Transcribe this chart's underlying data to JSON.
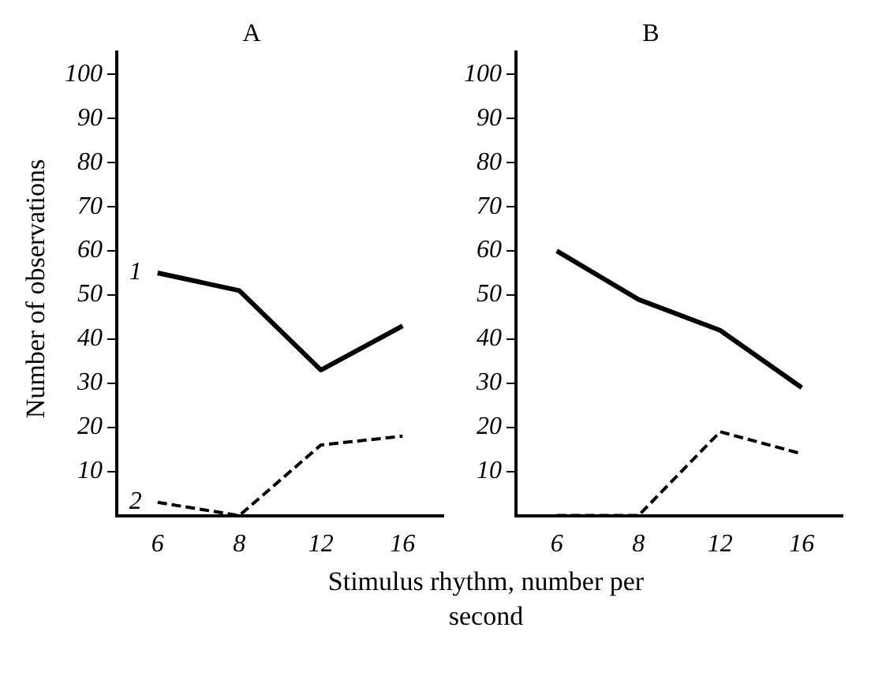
{
  "chart_data": [
    {
      "type": "line",
      "title": "A",
      "ylabel": "Number of observations",
      "xlabel": "Stimulus rhythm, number per second",
      "categories": [
        "6",
        "8",
        "12",
        "16"
      ],
      "ylim": [
        0,
        105
      ],
      "yticks": [
        10,
        20,
        30,
        40,
        50,
        60,
        70,
        80,
        90,
        100
      ],
      "grid": false,
      "legend": false,
      "marker": "none",
      "series": [
        {
          "name": "1",
          "color": "#000000",
          "line_style": "solid",
          "values": [
            55,
            51,
            33,
            43
          ]
        },
        {
          "name": "2",
          "color": "#000000",
          "line_style": "dashed",
          "values": [
            3,
            0,
            16,
            18
          ]
        }
      ]
    },
    {
      "type": "line",
      "title": "B",
      "categories": [
        "6",
        "8",
        "12",
        "16"
      ],
      "ylim": [
        0,
        105
      ],
      "yticks": [
        10,
        20,
        30,
        40,
        50,
        60,
        70,
        80,
        90,
        100
      ],
      "grid": false,
      "legend": false,
      "marker": "none",
      "series": [
        {
          "color": "#000000",
          "line_style": "solid",
          "values": [
            60,
            49,
            42,
            29
          ]
        },
        {
          "color": "#000000",
          "line_style": "dashed",
          "values": [
            0,
            0,
            19,
            14
          ]
        }
      ]
    }
  ]
}
